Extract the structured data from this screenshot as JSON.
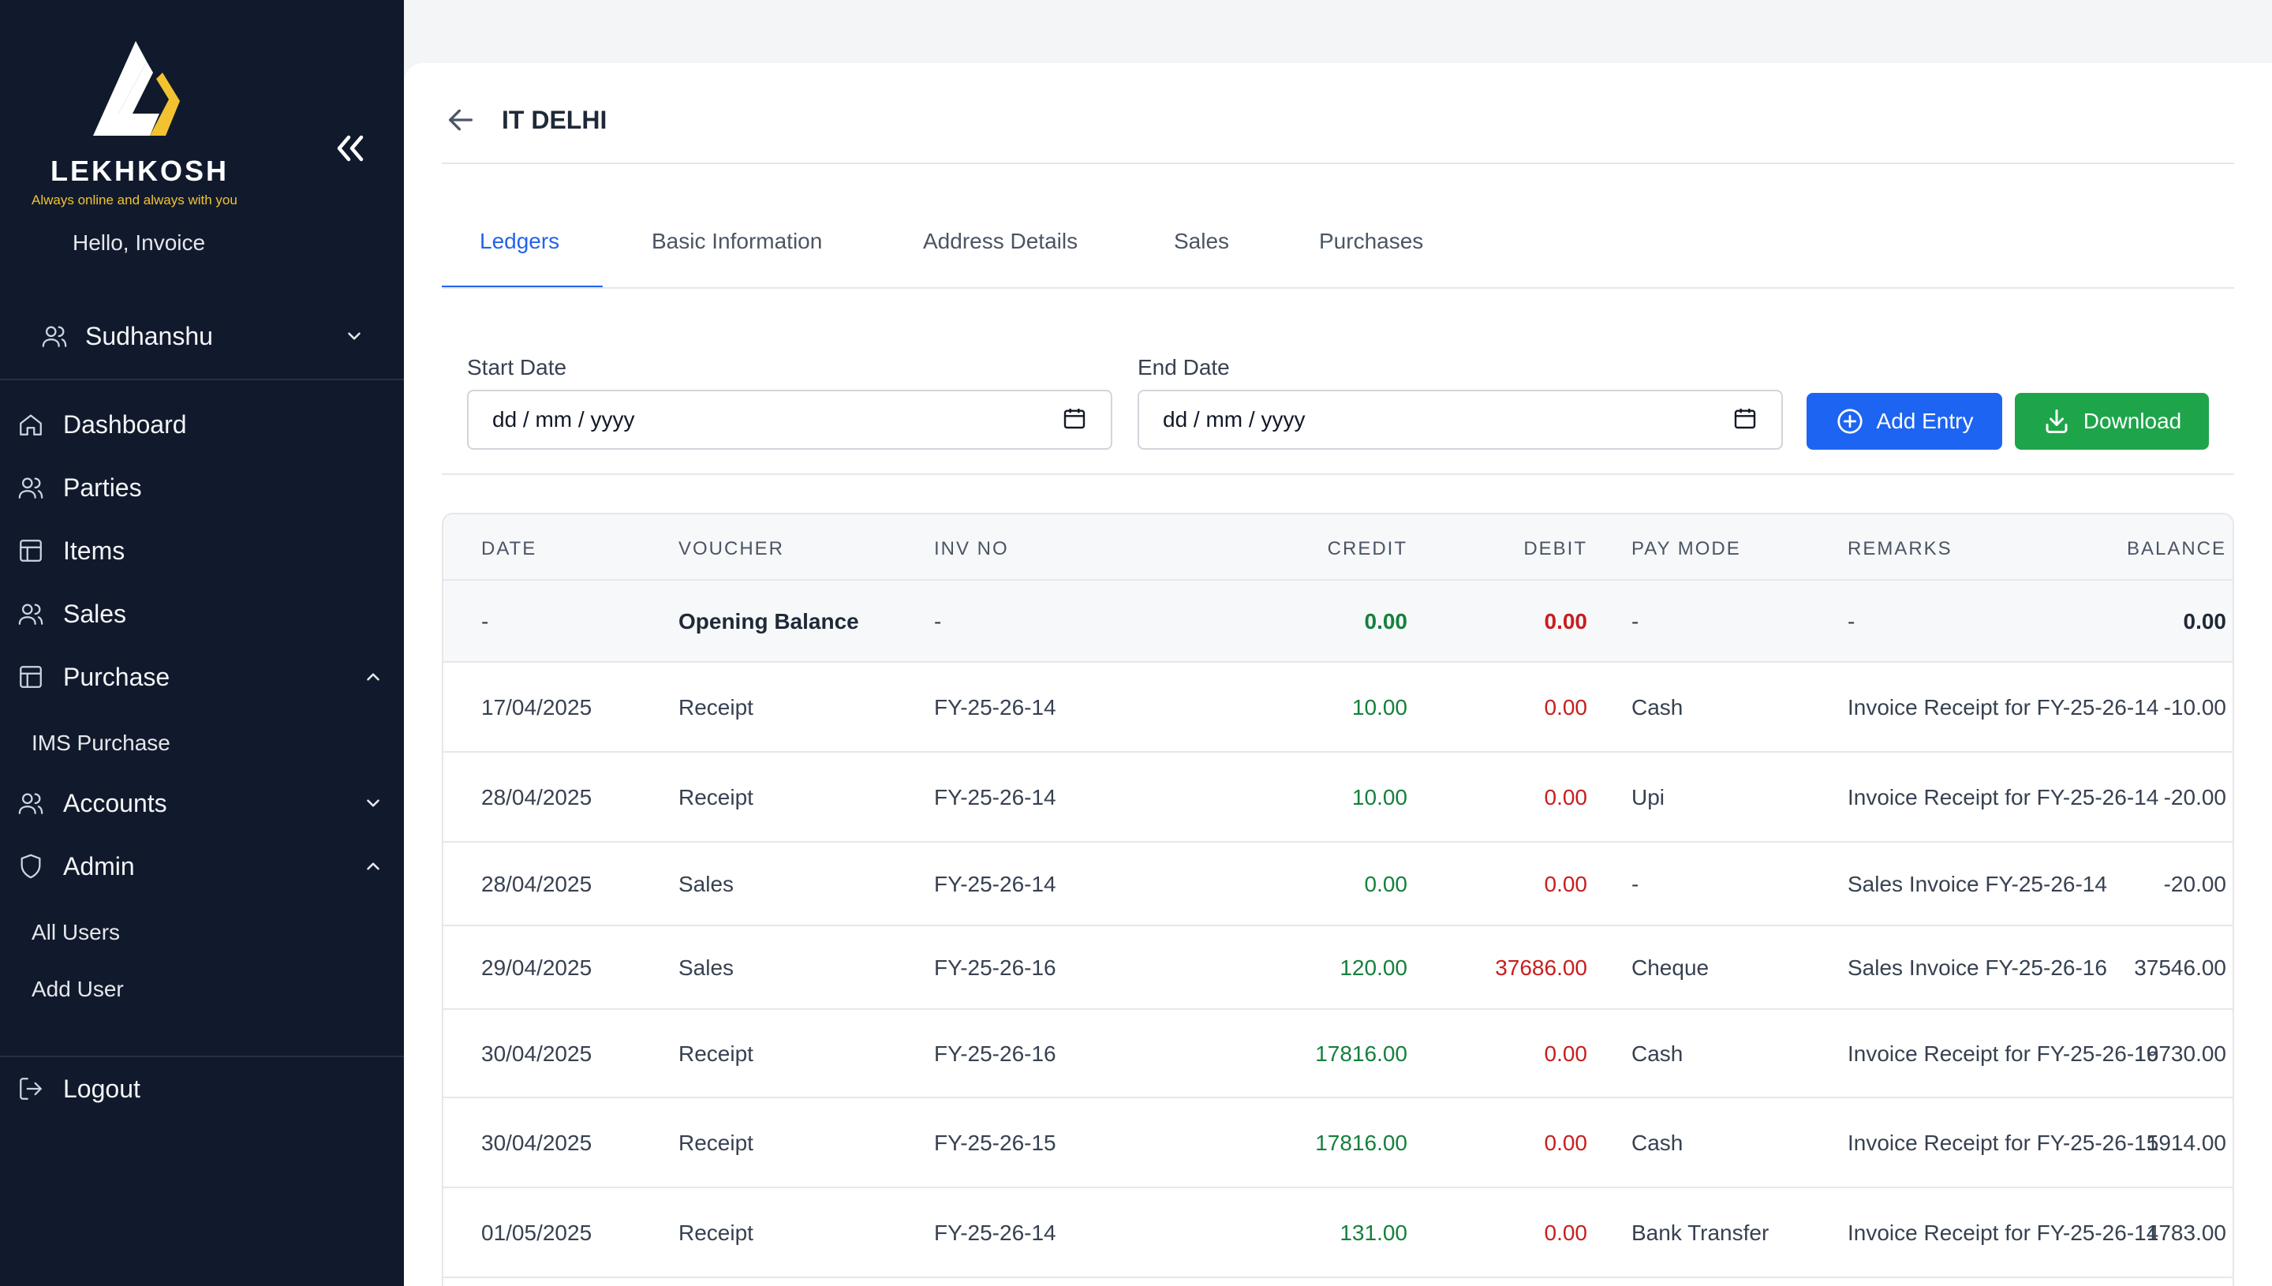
{
  "brand": {
    "name": "LEKHKOSH",
    "tagline": "Always online and always with you",
    "colors": {
      "mark_white": "#ffffff",
      "mark_yellow": "#f2c230"
    }
  },
  "sidebar": {
    "greeting": "Hello, Invoice",
    "user": "Sudhanshu",
    "nav": [
      {
        "label": "Dashboard",
        "icon": "home-icon"
      },
      {
        "label": "Parties",
        "icon": "users-icon"
      },
      {
        "label": "Items",
        "icon": "layout-icon"
      },
      {
        "label": "Sales",
        "icon": "users-icon"
      },
      {
        "label": "Purchase",
        "icon": "layout-icon",
        "expanded": true
      },
      {
        "label": "Accounts",
        "icon": "users-icon",
        "expanded": false
      },
      {
        "label": "Admin",
        "icon": "shield-icon",
        "expanded": true
      },
      {
        "label": "Logout",
        "icon": "logout-icon"
      }
    ],
    "purchase_sub": [
      "IMS Purchase"
    ],
    "admin_sub": [
      "All Users",
      "Add User"
    ]
  },
  "page": {
    "title": "IT DELHI"
  },
  "tabs": [
    {
      "label": "Ledgers",
      "active": true
    },
    {
      "label": "Basic Information",
      "active": false
    },
    {
      "label": "Address Details",
      "active": false
    },
    {
      "label": "Sales",
      "active": false
    },
    {
      "label": "Purchases",
      "active": false
    }
  ],
  "filters": {
    "start_label": "Start Date",
    "start_value": "dd / mm / yyyy",
    "end_label": "End Date",
    "end_value": "dd / mm / yyyy"
  },
  "actions": {
    "add_entry": "Add Entry",
    "download": "Download"
  },
  "table": {
    "headers": {
      "date": "DATE",
      "voucher": "VOUCHER",
      "inv_no": "INV NO",
      "credit": "CREDIT",
      "debit": "DEBIT",
      "pay_mode": "PAY MODE",
      "remarks": "REMARKS",
      "balance": "BALANCE"
    },
    "rows": [
      {
        "date": "-",
        "voucher": "Opening Balance",
        "inv_no": "-",
        "credit": "0.00",
        "debit": "0.00",
        "pay_mode": "-",
        "remarks": "-",
        "balance": "0.00"
      },
      {
        "date": "17/04/2025",
        "voucher": "Receipt",
        "inv_no": "FY-25-26-14",
        "credit": "10.00",
        "debit": "0.00",
        "pay_mode": "Cash",
        "remarks": "Invoice Receipt for FY-25-26-14",
        "balance": "-10.00"
      },
      {
        "date": "28/04/2025",
        "voucher": "Receipt",
        "inv_no": "FY-25-26-14",
        "credit": "10.00",
        "debit": "0.00",
        "pay_mode": "Upi",
        "remarks": "Invoice Receipt for FY-25-26-14",
        "balance": "-20.00"
      },
      {
        "date": "28/04/2025",
        "voucher": "Sales",
        "inv_no": "FY-25-26-14",
        "credit": "0.00",
        "debit": "0.00",
        "pay_mode": "-",
        "remarks": "Sales Invoice FY-25-26-14",
        "balance": "-20.00"
      },
      {
        "date": "29/04/2025",
        "voucher": "Sales",
        "inv_no": "FY-25-26-16",
        "credit": "120.00",
        "debit": "37686.00",
        "pay_mode": "Cheque",
        "remarks": "Sales Invoice FY-25-26-16",
        "balance": "37546.00"
      },
      {
        "date": "30/04/2025",
        "voucher": "Receipt",
        "inv_no": "FY-25-26-16",
        "credit": "17816.00",
        "debit": "0.00",
        "pay_mode": "Cash",
        "remarks": "Invoice Receipt for FY-25-26-16",
        "balance": "19730.00"
      },
      {
        "date": "30/04/2025",
        "voucher": "Receipt",
        "inv_no": "FY-25-26-15",
        "credit": "17816.00",
        "debit": "0.00",
        "pay_mode": "Cash",
        "remarks": "Invoice Receipt for FY-25-26-15",
        "balance": "1914.00"
      },
      {
        "date": "01/05/2025",
        "voucher": "Receipt",
        "inv_no": "FY-25-26-14",
        "credit": "131.00",
        "debit": "0.00",
        "pay_mode": "Bank Transfer",
        "remarks": "Invoice Receipt for FY-25-26-14",
        "balance": "1783.00"
      }
    ]
  },
  "colors": {
    "sidebar_bg": "#111a2c",
    "primary": "#1d64f2",
    "success": "#1ea54a",
    "credit": "#15803d",
    "debit": "#c81e1e"
  }
}
